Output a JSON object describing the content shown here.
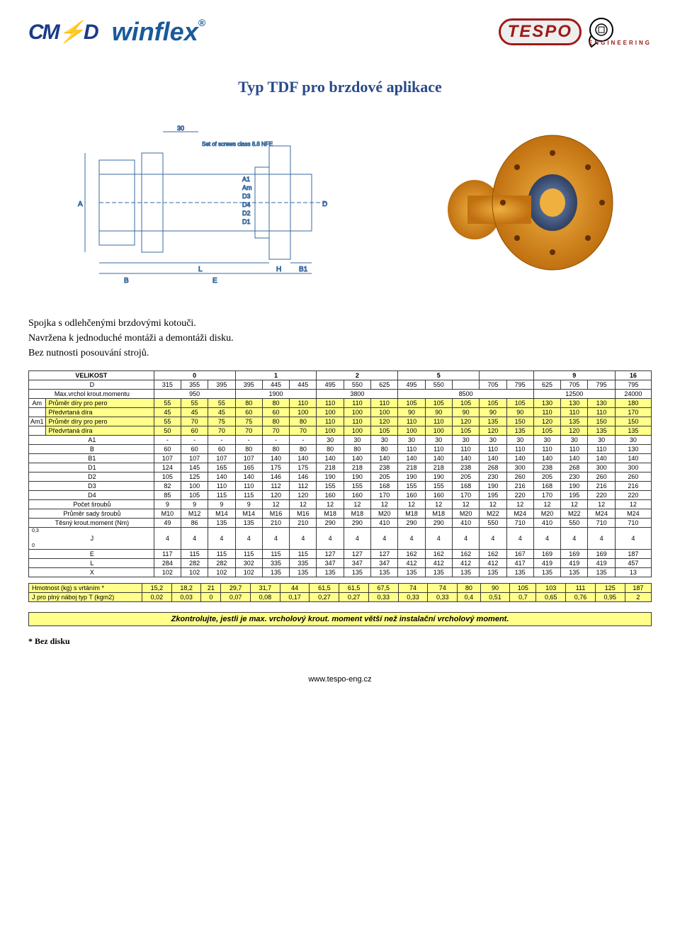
{
  "logos": {
    "cmd": "CMD",
    "winflex": "winflex",
    "tespo": "TESPO",
    "tespo_sub": "ENGINEERING"
  },
  "title": "Typ TDF pro brzdové aplikace",
  "description": {
    "l1": "Spojka s odlehčenými brzdovými kotouči.",
    "l2": "Navržena k jednoduché montáži a demontáži disku.",
    "l3": "Bez nutnosti posouvání strojů."
  },
  "table": {
    "size_label": "VELIKOST",
    "size_groups": [
      "0",
      "1",
      "2",
      "5",
      "9",
      "16"
    ],
    "rows": [
      {
        "bg": "white",
        "label": "D",
        "v": [
          "315",
          "355",
          "395",
          "395",
          "445",
          "445",
          "495",
          "550",
          "625",
          "495",
          "550",
          "",
          "705",
          "795",
          "625",
          "705",
          "795",
          "795"
        ]
      },
      {
        "bg": "white",
        "label": "Max.vrchol krout.momentu",
        "span": true,
        "v": [
          "950",
          "1900",
          "3800",
          "8500",
          "12500",
          "24000"
        ]
      },
      {
        "bg": "yellow",
        "side": "Am",
        "label": "Průměr díry pro pero",
        "v": [
          "55",
          "55",
          "55",
          "80",
          "80",
          "110",
          "110",
          "110",
          "110",
          "105",
          "105",
          "105",
          "105",
          "105",
          "130",
          "130",
          "130",
          "180"
        ]
      },
      {
        "bg": "yellow",
        "side": "",
        "label": "Předvrtaná díra",
        "v": [
          "45",
          "45",
          "45",
          "60",
          "60",
          "100",
          "100",
          "100",
          "100",
          "90",
          "90",
          "90",
          "90",
          "90",
          "110",
          "110",
          "110",
          "170"
        ]
      },
      {
        "bg": "yellow",
        "side": "Am1",
        "label": "Průměr díry pro pero",
        "v": [
          "55",
          "70",
          "75",
          "75",
          "80",
          "80",
          "110",
          "110",
          "120",
          "110",
          "110",
          "120",
          "135",
          "150",
          "120",
          "135",
          "150",
          "150"
        ]
      },
      {
        "bg": "yellow",
        "side": "",
        "label": "Předvrtaná díra",
        "v": [
          "50",
          "60",
          "70",
          "70",
          "70",
          "70",
          "100",
          "100",
          "105",
          "100",
          "100",
          "105",
          "120",
          "135",
          "105",
          "120",
          "135",
          "135"
        ]
      },
      {
        "bg": "white",
        "label": "A1",
        "v": [
          "-",
          "-",
          "-",
          "-",
          "-",
          "-",
          "30",
          "30",
          "30",
          "30",
          "30",
          "30",
          "30",
          "30",
          "30",
          "30",
          "30",
          "30"
        ]
      },
      {
        "bg": "white",
        "label": "B",
        "v": [
          "60",
          "60",
          "60",
          "80",
          "80",
          "80",
          "80",
          "80",
          "80",
          "110",
          "110",
          "110",
          "110",
          "110",
          "110",
          "110",
          "110",
          "130"
        ]
      },
      {
        "bg": "white",
        "label": "B1",
        "v": [
          "107",
          "107",
          "107",
          "107",
          "140",
          "140",
          "140",
          "140",
          "140",
          "140",
          "140",
          "140",
          "140",
          "140",
          "140",
          "140",
          "140",
          "140"
        ]
      },
      {
        "bg": "white",
        "label": "D1",
        "v": [
          "124",
          "145",
          "165",
          "165",
          "175",
          "175",
          "218",
          "218",
          "238",
          "218",
          "218",
          "238",
          "268",
          "300",
          "238",
          "268",
          "300",
          "300"
        ]
      },
      {
        "bg": "white",
        "label": "D2",
        "v": [
          "105",
          "125",
          "140",
          "140",
          "146",
          "146",
          "190",
          "190",
          "205",
          "190",
          "190",
          "205",
          "230",
          "260",
          "205",
          "230",
          "260",
          "260"
        ]
      },
      {
        "bg": "white",
        "label": "D3",
        "v": [
          "82",
          "100",
          "110",
          "110",
          "112",
          "112",
          "155",
          "155",
          "168",
          "155",
          "155",
          "168",
          "190",
          "216",
          "168",
          "190",
          "216",
          "216"
        ]
      },
      {
        "bg": "white",
        "label": "D4",
        "v": [
          "85",
          "105",
          "115",
          "115",
          "120",
          "120",
          "160",
          "160",
          "170",
          "160",
          "160",
          "170",
          "195",
          "220",
          "170",
          "195",
          "220",
          "220"
        ]
      },
      {
        "bg": "white",
        "label": "Počet šroubů",
        "v": [
          "9",
          "9",
          "9",
          "9",
          "12",
          "12",
          "12",
          "12",
          "12",
          "12",
          "12",
          "12",
          "12",
          "12",
          "12",
          "12",
          "12",
          "12"
        ]
      },
      {
        "bg": "white",
        "label": "Průměr sady šroubů",
        "v": [
          "M10",
          "M12",
          "M14",
          "M14",
          "M16",
          "M16",
          "M18",
          "M18",
          "M20",
          "M18",
          "M18",
          "M20",
          "M22",
          "M24",
          "M20",
          "M22",
          "M24",
          "M24"
        ]
      },
      {
        "bg": "white",
        "label": "Těsný krout.moment (Nm)",
        "v": [
          "49",
          "86",
          "135",
          "135",
          "210",
          "210",
          "290",
          "290",
          "410",
          "290",
          "290",
          "410",
          "550",
          "710",
          "410",
          "550",
          "710",
          "710"
        ]
      },
      {
        "bg": "white",
        "label": "J",
        "jrow": true,
        "v": [
          "4",
          "4",
          "4",
          "4",
          "4",
          "4",
          "4",
          "4",
          "4",
          "4",
          "4",
          "4",
          "4",
          "4",
          "4",
          "4",
          "4",
          "4"
        ]
      },
      {
        "bg": "white",
        "label": "E",
        "v": [
          "117",
          "115",
          "115",
          "115",
          "115",
          "115",
          "127",
          "127",
          "127",
          "162",
          "162",
          "162",
          "162",
          "167",
          "169",
          "169",
          "169",
          "187"
        ]
      },
      {
        "bg": "white",
        "label": "L",
        "v": [
          "284",
          "282",
          "282",
          "302",
          "335",
          "335",
          "347",
          "347",
          "347",
          "412",
          "412",
          "412",
          "412",
          "417",
          "419",
          "419",
          "419",
          "457"
        ]
      },
      {
        "bg": "white",
        "label": "X",
        "v": [
          "102",
          "102",
          "102",
          "102",
          "135",
          "135",
          "135",
          "135",
          "135",
          "135",
          "135",
          "135",
          "135",
          "135",
          "135",
          "135",
          "135",
          "13"
        ]
      }
    ],
    "j_top": "0,3",
    "j_bot": "0"
  },
  "bottom_table": {
    "rows": [
      {
        "label": "Hmotnost (kg) s vrtáním *",
        "v": [
          "15,2",
          "18,2",
          "21",
          "29,7",
          "31,7",
          "44",
          "61,5",
          "61,5",
          "67,5",
          "74",
          "74",
          "80",
          "90",
          "105",
          "103",
          "111",
          "125",
          "187"
        ]
      },
      {
        "label": "J pro plný náboj typ T (kgm2)",
        "v": [
          "0,02",
          "0,03",
          "0",
          "0,07",
          "0,08",
          "0,17",
          "0,27",
          "0,27",
          "0,33",
          "0,33",
          "0,33",
          "0,4",
          "0,51",
          "0,7",
          "0,65",
          "0,76",
          "0,95",
          "2"
        ]
      }
    ]
  },
  "check_note": "Zkontrolujte, jestli je max. vrcholový krout. moment větší než instalační vrcholový moment.",
  "footnote": "* Bez disku",
  "footer": "www.tespo-eng.cz",
  "colors": {
    "yellow": "#ffff8a",
    "border": "#3a3a3a"
  }
}
